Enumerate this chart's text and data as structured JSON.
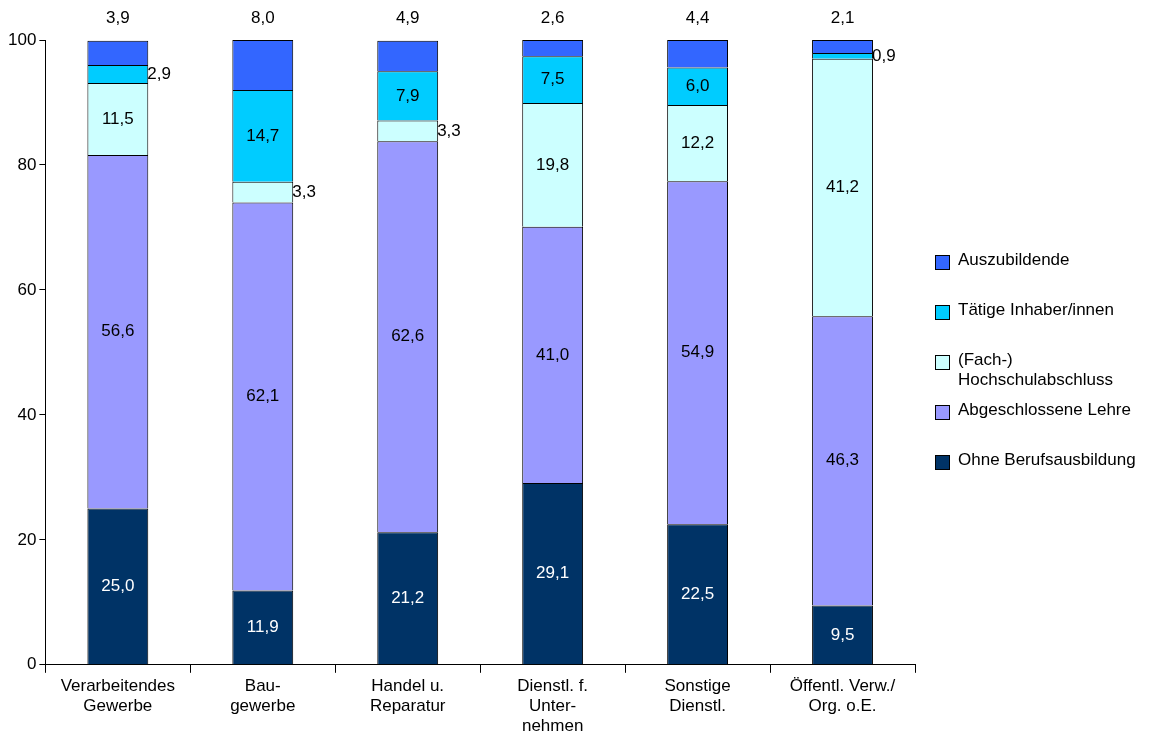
{
  "chart_data": {
    "type": "bar",
    "stacked": true,
    "categories": [
      "Verarbeitendes\nGewerbe",
      "Bau-\ngewerbe",
      "Handel u.\nReparatur",
      "Dienstl. f.\nUnter-\nnehmen",
      "Sonstige\nDienstl.",
      "Öffentl. Verw./\nOrg. o.E."
    ],
    "ylim": [
      0,
      100
    ],
    "yticks": [
      0,
      20,
      40,
      60,
      80,
      100
    ],
    "grid": false,
    "legend": "right",
    "data_labels": true,
    "series": [
      {
        "name": "Ohne Berufsausbildung",
        "color": "#003366",
        "values": [
          25.0,
          11.9,
          21.2,
          29.1,
          22.5,
          9.5
        ],
        "value_labels": [
          "25,0",
          "11,9",
          "21,2",
          "29,1",
          "22,5",
          "9,5"
        ]
      },
      {
        "name": "Abgeschlossene Lehre",
        "color": "#9999ff",
        "values": [
          56.6,
          62.1,
          62.6,
          41.0,
          54.9,
          46.3
        ],
        "value_labels": [
          "56,6",
          "62,1",
          "62,6",
          "41,0",
          "54,9",
          "46,3"
        ]
      },
      {
        "name": "(Fach-) Hochschulabschluss",
        "color": "#ccffff",
        "values": [
          11.5,
          3.3,
          3.3,
          19.8,
          12.2,
          41.2
        ],
        "value_labels": [
          "11,5",
          "3,3",
          "3,3",
          "19,8",
          "12,2",
          "41,2"
        ]
      },
      {
        "name": "Tätige Inhaber/innen",
        "color": "#00ccff",
        "values": [
          2.9,
          14.7,
          7.9,
          7.5,
          6.0,
          0.9
        ],
        "value_labels": [
          "2,9",
          "14,7",
          "7,9",
          "7,5",
          "6,0",
          "0,9"
        ]
      },
      {
        "name": "Auszubildende",
        "color": "#3366ff",
        "values": [
          3.9,
          8.0,
          4.9,
          2.6,
          4.4,
          2.1
        ],
        "value_labels": [
          "3,9",
          "8,0",
          "4,9",
          "2,6",
          "4,4",
          "2,1"
        ]
      }
    ]
  }
}
